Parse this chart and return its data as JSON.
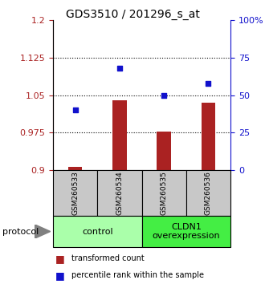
{
  "title": "GDS3510 / 201296_s_at",
  "samples": [
    "GSM260533",
    "GSM260534",
    "GSM260535",
    "GSM260536"
  ],
  "bar_values": [
    0.907,
    1.04,
    0.978,
    1.035
  ],
  "bar_base": 0.9,
  "dot_values_pct": [
    40,
    68,
    50,
    58
  ],
  "ylim_left": [
    0.9,
    1.2
  ],
  "ylim_right": [
    0,
    100
  ],
  "left_yticks": [
    0.9,
    0.975,
    1.05,
    1.125,
    1.2
  ],
  "right_yticks": [
    0,
    25,
    50,
    75,
    100
  ],
  "left_ytick_labels": [
    "0.9",
    "0.975",
    "1.05",
    "1.125",
    "1.2"
  ],
  "right_ytick_labels": [
    "0",
    "25",
    "50",
    "75",
    "100%"
  ],
  "bar_color": "#aa2222",
  "dot_color": "#1111cc",
  "sample_box_color": "#c8c8c8",
  "group1_color": "#aaffaa",
  "group2_color": "#44ee44",
  "group1_label": "control",
  "group2_label": "CLDN1\noverexpression",
  "legend_bar_label": "transformed count",
  "legend_dot_label": "percentile rank within the sample"
}
